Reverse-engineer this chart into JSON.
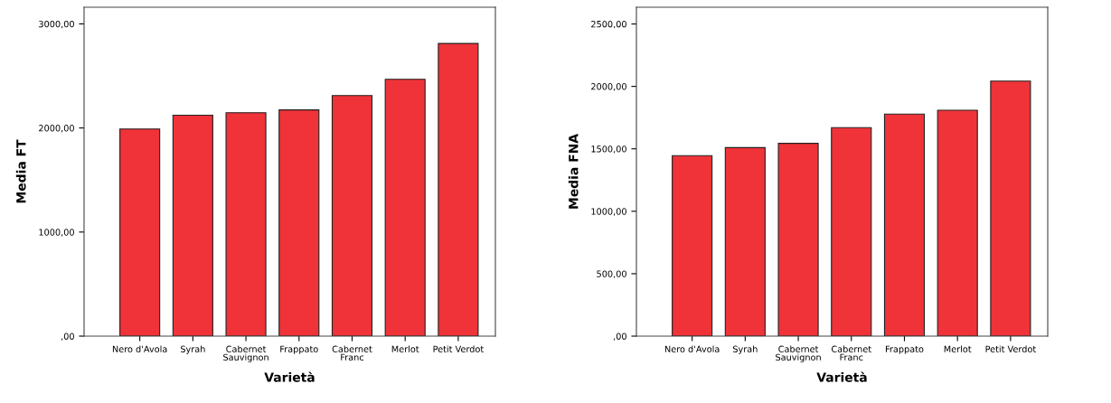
{
  "chart_data": [
    {
      "type": "bar",
      "xlabel": "Varietà",
      "ylabel": "Media FT",
      "categories": [
        "Nero d'Avola",
        "Syrah",
        "Cabernet\nSauvignon",
        "Frappato",
        "Cabernet\nFranc",
        "Merlot",
        "Petit Verdot"
      ],
      "series": [
        {
          "color": "#ef3339",
          "values": [
            1990,
            2123,
            2147,
            2174,
            2311,
            2468,
            2812
          ]
        }
      ],
      "ylim": [
        0,
        3160
      ],
      "yticks": [
        {
          "value": 0,
          "label": ",00"
        },
        {
          "value": 1000,
          "label": "1000,00"
        },
        {
          "value": 2000,
          "label": "2000,00"
        },
        {
          "value": 3000,
          "label": "3000,00"
        }
      ],
      "grid": false,
      "legend": false
    },
    {
      "type": "bar",
      "xlabel": "Varietà",
      "ylabel": "Media FNA",
      "categories": [
        "Nero d'Avola",
        "Syrah",
        "Cabernet\nSauvignon",
        "Cabernet\nFranc",
        "Frappato",
        "Merlot",
        "Petit Verdot"
      ],
      "series": [
        {
          "color": "#ef3339",
          "values": [
            1445,
            1510,
            1544,
            1670,
            1778,
            1809,
            2042
          ]
        }
      ],
      "ylim": [
        0,
        2634
      ],
      "yticks": [
        {
          "value": 0,
          "label": ",00"
        },
        {
          "value": 500,
          "label": "500,00"
        },
        {
          "value": 1000,
          "label": "1000,00"
        },
        {
          "value": 1500,
          "label": "1500,00"
        },
        {
          "value": 2000,
          "label": "2000,00"
        },
        {
          "value": 2500,
          "label": "2500,00"
        }
      ],
      "grid": false,
      "legend": false
    }
  ]
}
